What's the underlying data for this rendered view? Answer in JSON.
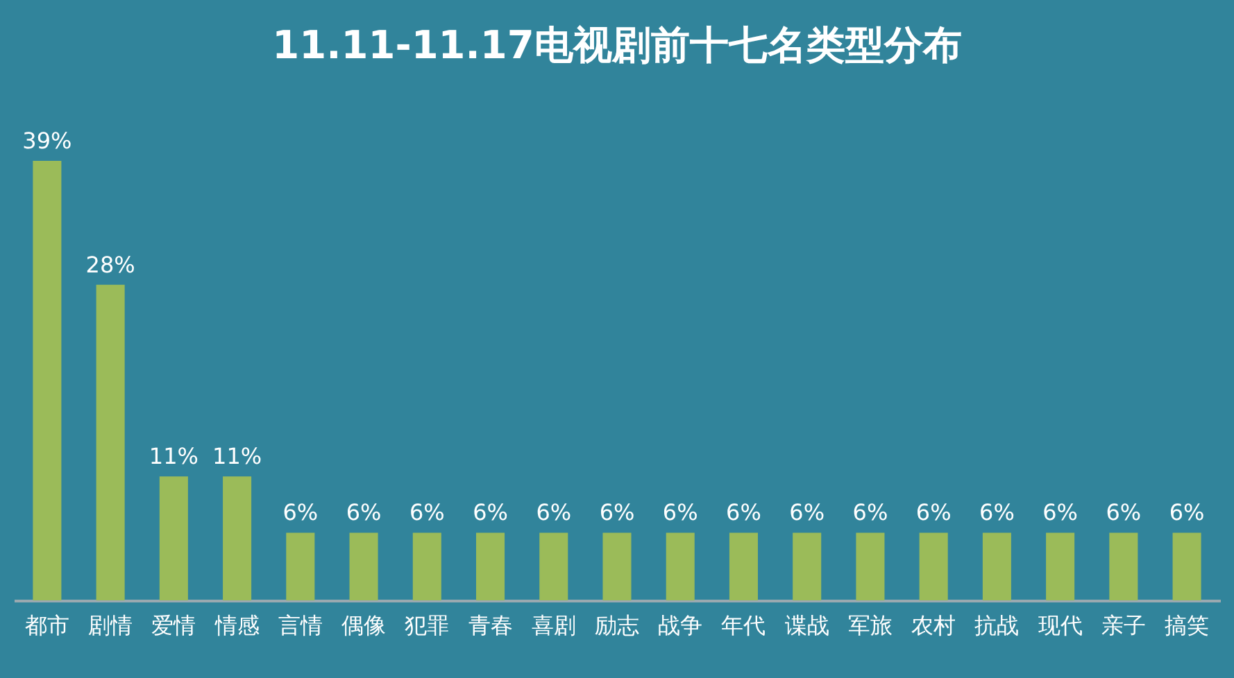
{
  "chart_data": {
    "type": "bar",
    "title": "11.11-11.17电视剧前十七名类型分布",
    "categories": [
      "都市",
      "剧情",
      "爱情",
      "情感",
      "言情",
      "偶像",
      "犯罪",
      "青春",
      "喜剧",
      "励志",
      "战争",
      "年代",
      "谍战",
      "军旅",
      "农村",
      "抗战",
      "现代",
      "亲子",
      "搞笑"
    ],
    "values": [
      39,
      28,
      11,
      11,
      6,
      6,
      6,
      6,
      6,
      6,
      6,
      6,
      6,
      6,
      6,
      6,
      6,
      6,
      6
    ],
    "value_labels": [
      "39%",
      "28%",
      "11%",
      "11%",
      "6%",
      "6%",
      "6%",
      "6%",
      "6%",
      "6%",
      "6%",
      "6%",
      "6%",
      "6%",
      "6%",
      "6%",
      "6%",
      "6%",
      "6%"
    ],
    "color": "#9bbb59",
    "grid": false
  }
}
